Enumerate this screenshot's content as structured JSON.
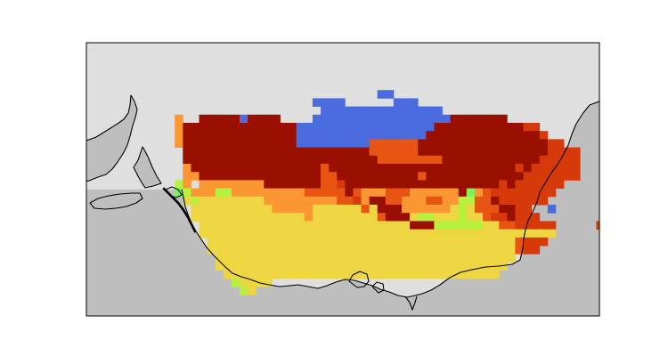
{
  "map": {
    "projection": "plate-carree",
    "frame_visible": true,
    "ocean_color": "#dfdfdf",
    "land_color": "#bebebe",
    "coastline_color": "#000000",
    "frame_color": "#000000",
    "cell_colors": {
      "blue": "#4a6cdf",
      "dark_red": "#9a1000",
      "red": "#d63a0b",
      "red_orange": "#e85512",
      "orange": "#fb9733",
      "yellow": "#eed642",
      "lime": "#b6f23d",
      "green": "#80f060"
    }
  }
}
